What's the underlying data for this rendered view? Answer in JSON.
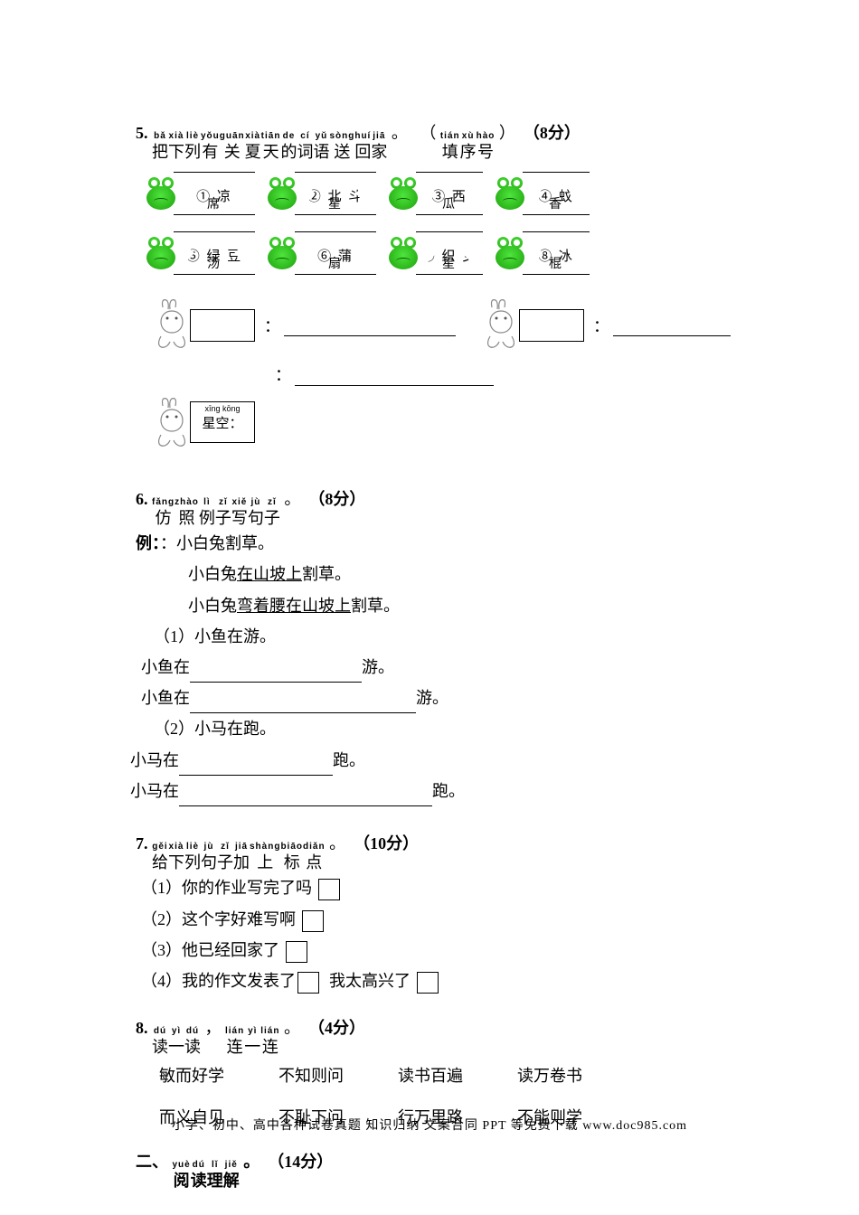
{
  "q5": {
    "num": "5.",
    "pinyin_groups": [
      {
        "py": "bǎ",
        "hz": "把"
      },
      {
        "py": "xià",
        "hz": "下"
      },
      {
        "py": "liè",
        "hz": "列"
      },
      {
        "py": "yǒu",
        "hz": "有"
      },
      {
        "py": "guān",
        "hz": "关"
      },
      {
        "py": "xià",
        "hz": "夏"
      },
      {
        "py": "tiān",
        "hz": "天"
      },
      {
        "py": "de",
        "hz": "的"
      },
      {
        "py": "cí",
        "hz": "词"
      },
      {
        "py": "yǔ",
        "hz": "语"
      },
      {
        "py": "sòng",
        "hz": "送"
      },
      {
        "py": "huí",
        "hz": "回"
      },
      {
        "py": "jiā",
        "hz": "家"
      }
    ],
    "period": "。",
    "paren_open": "（",
    "tian_group": [
      {
        "py": "tián",
        "hz": "填"
      },
      {
        "py": "xù",
        "hz": "序"
      },
      {
        "py": "hào",
        "hz": "号"
      }
    ],
    "paren_close": "）",
    "score_open": "（",
    "score": "8分",
    "score_close": "）",
    "tokens1": [
      {
        "num": "①",
        "top": "凉",
        "bot": "席"
      },
      {
        "num": "②",
        "top": "北 斗",
        "bot": "星"
      },
      {
        "num": "③",
        "top": "西",
        "bot": "瓜"
      },
      {
        "num": "④",
        "top": "蚊",
        "bot": "香"
      }
    ],
    "tokens2": [
      {
        "num": "⑤",
        "top": "绿 豆",
        "bot": "汤"
      },
      {
        "num": "⑥",
        "top": "蒲",
        "bot": "扇"
      },
      {
        "num": "⑦",
        "top": "织 女",
        "bot": "星"
      },
      {
        "num": "⑧",
        "top": "冰",
        "bot": "棍"
      }
    ],
    "star_py": "xīng kōng",
    "star_hz": "星空："
  },
  "q6": {
    "num": "6.",
    "pinyin_groups": [
      {
        "py": "fǎng",
        "hz": "仿"
      },
      {
        "py": "zhào",
        "hz": "照"
      },
      {
        "py": "lì",
        "hz": "例"
      },
      {
        "py": "zǐ",
        "hz": "子"
      },
      {
        "py": "xiě",
        "hz": "写"
      },
      {
        "py": "jù",
        "hz": "句"
      },
      {
        "py": "zǐ",
        "hz": "子"
      }
    ],
    "period": "。",
    "score_open": "（",
    "score": "8分",
    "score_close": "）",
    "ex_label": "例：",
    "ex_colon": "：",
    "ex1": "小白兔割草。",
    "ex2a": "小白兔",
    "ex2u": "在山坡上",
    "ex2b": "割草。",
    "ex3a": "小白兔",
    "ex3u": "弯着腰在山坡上",
    "ex3b": "割草。",
    "s1": "（1）小鱼在游。",
    "s1a": "小鱼在",
    "s1b": "游。",
    "s2a": "小鱼在",
    "s2b": "游。",
    "s3": "（2）小马在跑。",
    "s3a": "小马在",
    "s3b": "跑。",
    "s4a": "小马在",
    "s4b": "跑。"
  },
  "q7": {
    "num": "7.",
    "pinyin_groups": [
      {
        "py": "gěi",
        "hz": "给"
      },
      {
        "py": "xià",
        "hz": "下"
      },
      {
        "py": "liè",
        "hz": "列"
      },
      {
        "py": "jù",
        "hz": "句"
      },
      {
        "py": "zǐ",
        "hz": "子"
      },
      {
        "py": "jiā",
        "hz": "加"
      },
      {
        "py": "shàng",
        "hz": "上"
      },
      {
        "py": "biāo",
        "hz": "标"
      },
      {
        "py": "diǎn",
        "hz": "点"
      }
    ],
    "period": "。",
    "score_open": "（",
    "score": "10分",
    "score_close": "）",
    "l1": "（1）你的作业写完了吗",
    "l2": "（2）这个字好难写啊",
    "l3": "（3）他已经回家了",
    "l4a": "（4）我的作文发表了",
    "l4b": "我太高兴了"
  },
  "q8": {
    "num": "8.",
    "pg1": [
      {
        "py": "dú",
        "hz": "读"
      },
      {
        "py": "yì",
        "hz": "一"
      },
      {
        "py": "dú",
        "hz": "读"
      }
    ],
    "comma": "，",
    "pg2": [
      {
        "py": "lián",
        "hz": "连"
      },
      {
        "py": "yì",
        "hz": "一"
      },
      {
        "py": "lián",
        "hz": "连"
      }
    ],
    "period": "。",
    "score_open": "（",
    "score": "4分",
    "score_close": "）",
    "row1": [
      "敏而好学",
      "不知则问",
      "读书百遍",
      "读万卷书"
    ],
    "row2": [
      "而义自见",
      "不耻下问",
      "行万里路",
      "不能则学"
    ]
  },
  "sec2": {
    "num": "二、",
    "pg": [
      {
        "py": "yuè",
        "hz": "阅"
      },
      {
        "py": "dú",
        "hz": "读"
      },
      {
        "py": "lǐ",
        "hz": "理"
      },
      {
        "py": "jiě",
        "hz": "解"
      }
    ],
    "period": "。",
    "score_open": "（",
    "score": "14分",
    "score_close": "）"
  },
  "footer": "小学、初中、高中各种试卷真题 知识归纳 文案合同 PPT 等免费下载  www.doc985.com"
}
